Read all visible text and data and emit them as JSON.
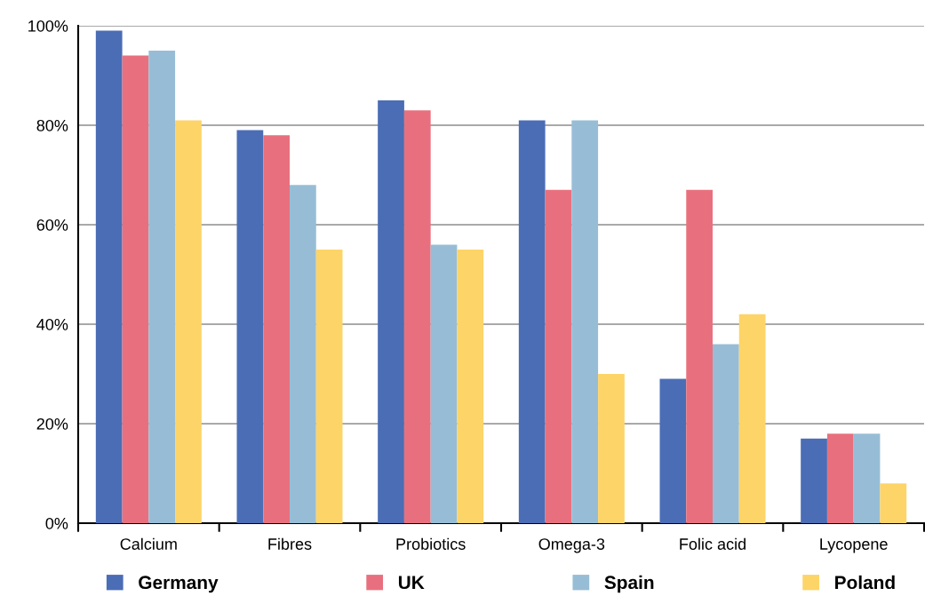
{
  "chart_data": {
    "type": "bar",
    "categories": [
      "Calcium",
      "Fibres",
      "Probiotics",
      "Omega-3",
      "Folic acid",
      "Lycopene"
    ],
    "series": [
      {
        "name": "Germany",
        "color": "#4a6db5",
        "values": [
          99,
          79,
          85,
          81,
          29,
          17
        ]
      },
      {
        "name": "UK",
        "color": "#e8707e",
        "values": [
          94,
          78,
          83,
          67,
          67,
          18
        ]
      },
      {
        "name": "Spain",
        "color": "#97bdd6",
        "values": [
          95,
          68,
          56,
          81,
          36,
          18
        ]
      },
      {
        "name": "Poland",
        "color": "#fdd468",
        "values": [
          81,
          55,
          55,
          30,
          42,
          8
        ]
      }
    ],
    "ylim": [
      0,
      100
    ],
    "yticks": [
      {
        "value": 0,
        "label": "0%"
      },
      {
        "value": 20,
        "label": "20%"
      },
      {
        "value": 40,
        "label": "40%"
      },
      {
        "value": 60,
        "label": "60%"
      },
      {
        "value": 80,
        "label": "80%"
      },
      {
        "value": 100,
        "label": "100%"
      }
    ],
    "grid": "y",
    "legend": "bottom"
  }
}
